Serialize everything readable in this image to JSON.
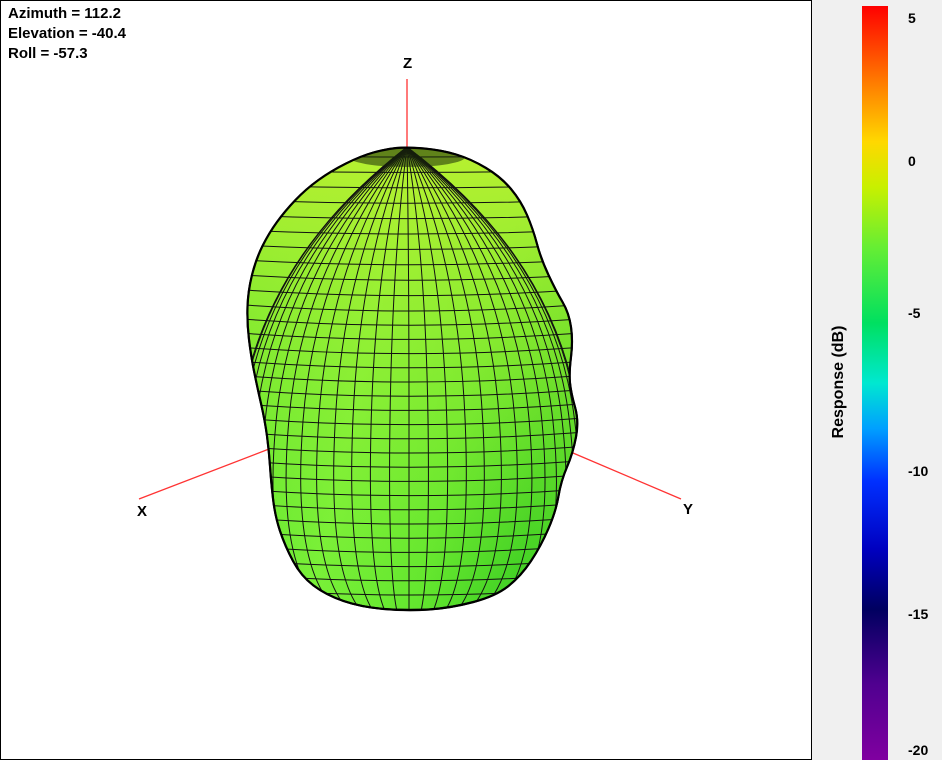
{
  "view": {
    "azimuth": "Azimuth = 112.2",
    "elevation": "Elevation = -40.4",
    "roll": "Roll = -57.3"
  },
  "axes": {
    "x": "X",
    "y": "Y",
    "z": "Z"
  },
  "colorbar": {
    "title": "Response  (dB)",
    "ticks": [
      "5",
      "0",
      "-5",
      "-10",
      "-15",
      "-20"
    ],
    "range": [
      -20,
      5
    ]
  },
  "colors": {
    "surface": "#66ee33",
    "axis_line": "#ff3333",
    "mesh": "#000000"
  }
}
